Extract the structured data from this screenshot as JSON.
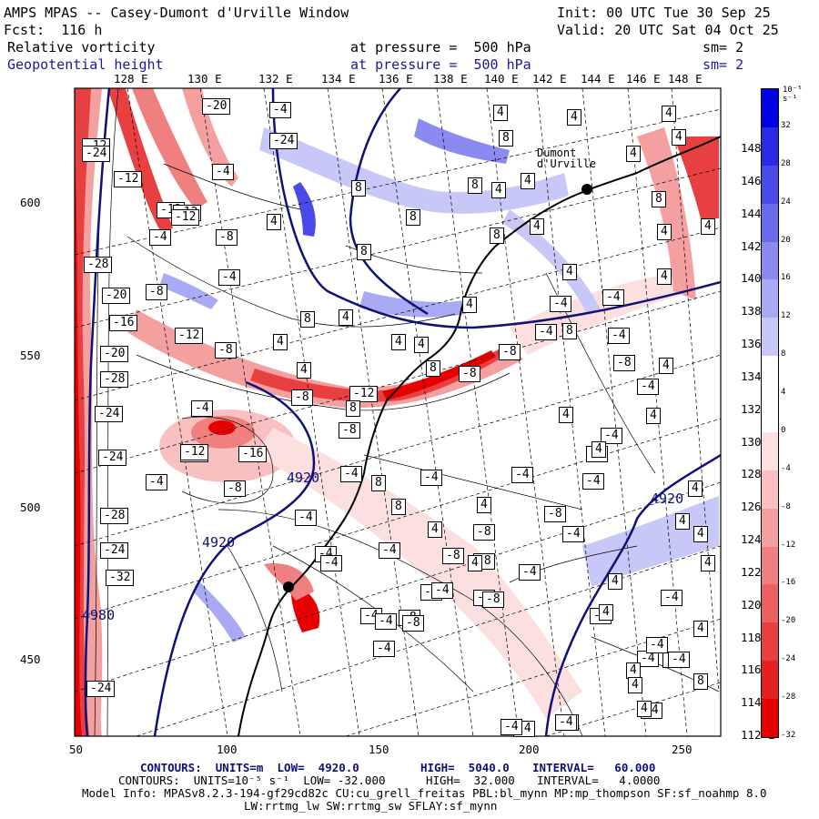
{
  "header": {
    "title": "AMPS MPAS -- Casey-Dumont d'Urville Window",
    "init": "Init: 00 UTC Tue 30 Sep 25",
    "forecast": "Fcst:  116 h",
    "valid": "Valid: 20 UTC Sat 04 Oct 25",
    "field1": {
      "name": "Relative vorticity",
      "level": "at pressure =  500 hPa",
      "sm": "sm= 2"
    },
    "field2": {
      "name": "Geopotential height",
      "level": "at pressure =  500 hPa",
      "sm": "sm= 2"
    }
  },
  "axes": {
    "lon_labels": [
      "128 E",
      "130 E",
      "132 E",
      "134 E",
      "136 E",
      "138 E",
      "140 E",
      "142 E",
      "144 E",
      "146 E",
      "148 E"
    ],
    "lat_labels": [
      "148 E",
      "146 E",
      "144 E",
      "142 E",
      "140 E",
      "138 E",
      "136 E",
      "134 E",
      "132 E",
      "130 E",
      "128 E",
      "126 E",
      "124 E",
      "122 E",
      "120 E",
      "118 E",
      "116 E",
      "114 E",
      "112 E"
    ],
    "x_ticks": [
      "50",
      "100",
      "150",
      "200",
      "250"
    ],
    "y_ticks": [
      "600",
      "550",
      "500",
      "450"
    ]
  },
  "colorbar": {
    "unit": "10⁻⁵ s⁻¹",
    "labels": [
      "32",
      "28",
      "24",
      "20",
      "16",
      "12",
      "8",
      "4",
      "0",
      "-4",
      "-8",
      "-12",
      "-16",
      "-20",
      "-24",
      "-28",
      "-32"
    ],
    "colors": [
      "#0000e6",
      "#2a2ae6",
      "#4a4ae8",
      "#6a6aec",
      "#8a8af0",
      "#aaaaf4",
      "#c8c8f8",
      "#ffffff",
      "#ffffff",
      "#fce0e0",
      "#f8c0c0",
      "#f4a0a0",
      "#f08080",
      "#ec6060",
      "#e84040",
      "#e62020",
      "#e60000"
    ]
  },
  "map": {
    "contour_labels_height": [
      "4920",
      "4920",
      "4920",
      "4980"
    ],
    "vort_labels": [
      {
        "t": "-20"
      },
      {
        "t": "-4"
      },
      {
        "t": "-12"
      },
      {
        "t": "-24"
      },
      {
        "t": "-12"
      },
      {
        "t": "-4"
      },
      {
        "t": "-12"
      },
      {
        "t": "-8"
      },
      {
        "t": "-4"
      },
      {
        "t": "-28"
      },
      {
        "t": "-20"
      },
      {
        "t": "-16"
      },
      {
        "t": "-20"
      },
      {
        "t": "-28"
      },
      {
        "t": "-24"
      },
      {
        "t": "-24"
      },
      {
        "t": "-28"
      },
      {
        "t": "-24"
      },
      {
        "t": "-32"
      },
      {
        "t": "-24"
      },
      {
        "t": "-12"
      },
      {
        "t": "-8"
      },
      {
        "t": "-8"
      },
      {
        "t": "-12"
      },
      {
        "t": "-8"
      },
      {
        "t": "-12"
      },
      {
        "t": "-4"
      },
      {
        "t": "-8"
      },
      {
        "t": "-4"
      },
      {
        "t": "-4"
      },
      {
        "t": "-4"
      },
      {
        "t": "-12"
      },
      {
        "t": "-8"
      },
      {
        "t": "-8"
      },
      {
        "t": "-4"
      },
      {
        "t": "-4"
      },
      {
        "t": "-4"
      },
      {
        "t": "-4"
      },
      {
        "t": "-4"
      },
      {
        "t": "-8"
      },
      {
        "t": "-8"
      },
      {
        "t": "-4"
      },
      {
        "t": "-8"
      },
      {
        "t": "-4"
      },
      {
        "t": "-8"
      },
      {
        "t": "-4"
      },
      {
        "t": "-4"
      },
      {
        "t": "-8"
      },
      {
        "t": "-4"
      },
      {
        "t": "-4"
      },
      {
        "t": "-4"
      },
      {
        "t": "-8"
      },
      {
        "t": "-4"
      },
      {
        "t": "-4"
      },
      {
        "t": "-8"
      },
      {
        "t": "-4"
      },
      {
        "t": "-4"
      },
      {
        "t": "-4"
      },
      {
        "t": "-4"
      },
      {
        "t": "-4"
      },
      {
        "t": "-12"
      },
      {
        "t": "-16"
      },
      {
        "t": "-24"
      },
      {
        "t": "-4"
      },
      {
        "t": "-8"
      },
      {
        "t": "-4"
      },
      {
        "t": "-4"
      },
      {
        "t": "-4"
      },
      {
        "t": "-4"
      },
      {
        "t": "-4"
      },
      {
        "t": "-4"
      },
      {
        "t": "-8"
      },
      {
        "t": "-4"
      },
      {
        "t": "-12"
      },
      {
        "t": "-4"
      },
      {
        "t": "-4"
      },
      {
        "t": "-4"
      },
      {
        "t": "-4"
      },
      {
        "t": "-4"
      },
      {
        "t": "-8"
      },
      {
        "t": "4"
      },
      {
        "t": "4"
      },
      {
        "t": "8"
      },
      {
        "t": "4"
      },
      {
        "t": "8"
      },
      {
        "t": "8"
      },
      {
        "t": "4"
      },
      {
        "t": "8"
      },
      {
        "t": "8"
      },
      {
        "t": "4"
      },
      {
        "t": "4"
      },
      {
        "t": "4"
      },
      {
        "t": "8"
      },
      {
        "t": "4"
      },
      {
        "t": "4"
      },
      {
        "t": "4"
      },
      {
        "t": "4"
      },
      {
        "t": "8"
      },
      {
        "t": "4"
      },
      {
        "t": "8"
      },
      {
        "t": "8"
      },
      {
        "t": "4"
      },
      {
        "t": "4"
      },
      {
        "t": "4"
      },
      {
        "t": "4"
      },
      {
        "t": "4"
      },
      {
        "t": "4"
      },
      {
        "t": "8"
      },
      {
        "t": "4"
      },
      {
        "t": "8"
      },
      {
        "t": "4"
      },
      {
        "t": "4"
      },
      {
        "t": "4"
      },
      {
        "t": "4"
      },
      {
        "t": "4"
      },
      {
        "t": "4"
      },
      {
        "t": "8"
      },
      {
        "t": "8"
      },
      {
        "t": "4"
      },
      {
        "t": "4"
      },
      {
        "t": "4"
      },
      {
        "t": "4"
      },
      {
        "t": "4"
      },
      {
        "t": "8"
      },
      {
        "t": "4"
      },
      {
        "t": "4"
      },
      {
        "t": "4"
      },
      {
        "t": "4"
      },
      {
        "t": "4"
      },
      {
        "t": "4"
      }
    ],
    "station_label": "Dumont d'Urville"
  },
  "footer": {
    "line1": {
      "contours": "CONTOURS:  UNITS=m  LOW=  4920.0",
      "high": "HIGH=  5040.0",
      "interval": "INTERVAL=   60.000"
    },
    "line2": {
      "contours": "CONTOURS:  UNITS=10⁻⁵ s⁻¹  LOW= -32.000",
      "high": "HIGH=  32.000",
      "interval": "INTERVAL=   4.0000"
    },
    "line3": "Model Info: MPASv8.2.3-194-gf29cd82c CU:cu_grell_freitas PBL:bl_mynn MP:mp_thompson SF:sf_noahmp 8.0",
    "line4": "LW:rrtmg_lw SW:rrtmg_sw SFLAY:sf_mynn"
  }
}
